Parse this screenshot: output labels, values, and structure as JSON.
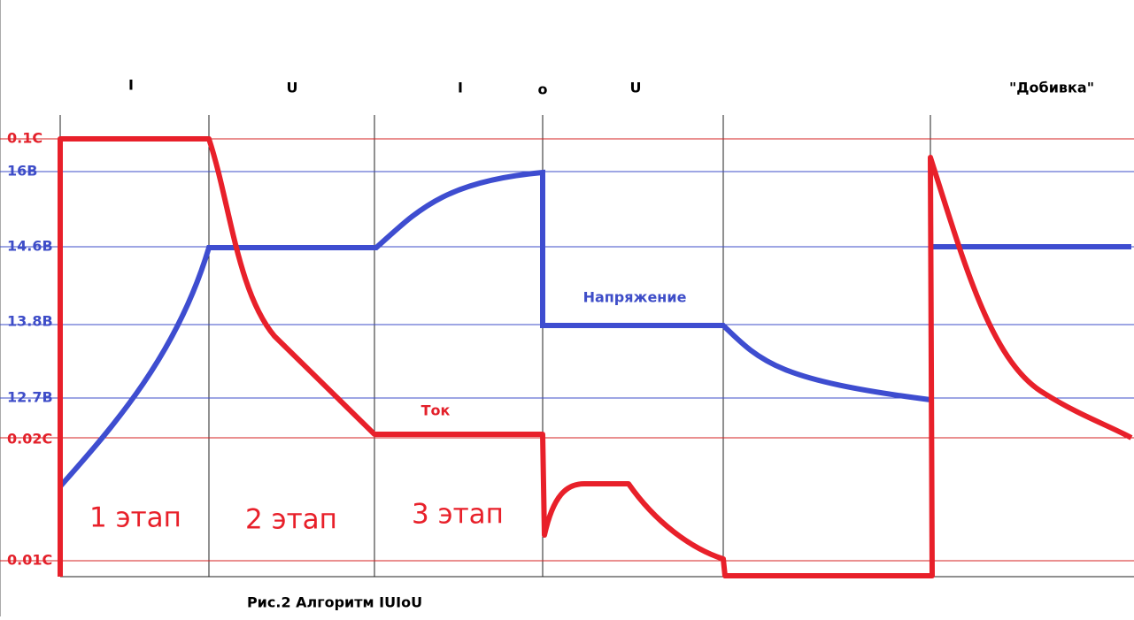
{
  "header": {
    "phases": [
      "I",
      "U",
      "I",
      "o",
      "U",
      "\"Добивка\""
    ]
  },
  "axis_labels": {
    "current": [
      "0.1C",
      "0.02C",
      "0.01C"
    ],
    "voltage": [
      "16В",
      "14.6В",
      "13.8В",
      "12.7В"
    ]
  },
  "annotations": {
    "voltage": "Напряжение",
    "current": "Ток",
    "stages": [
      "1 этап",
      "2 этап",
      "3 этап"
    ]
  },
  "caption": "Рис.2 Алгоритм IUIoU"
}
